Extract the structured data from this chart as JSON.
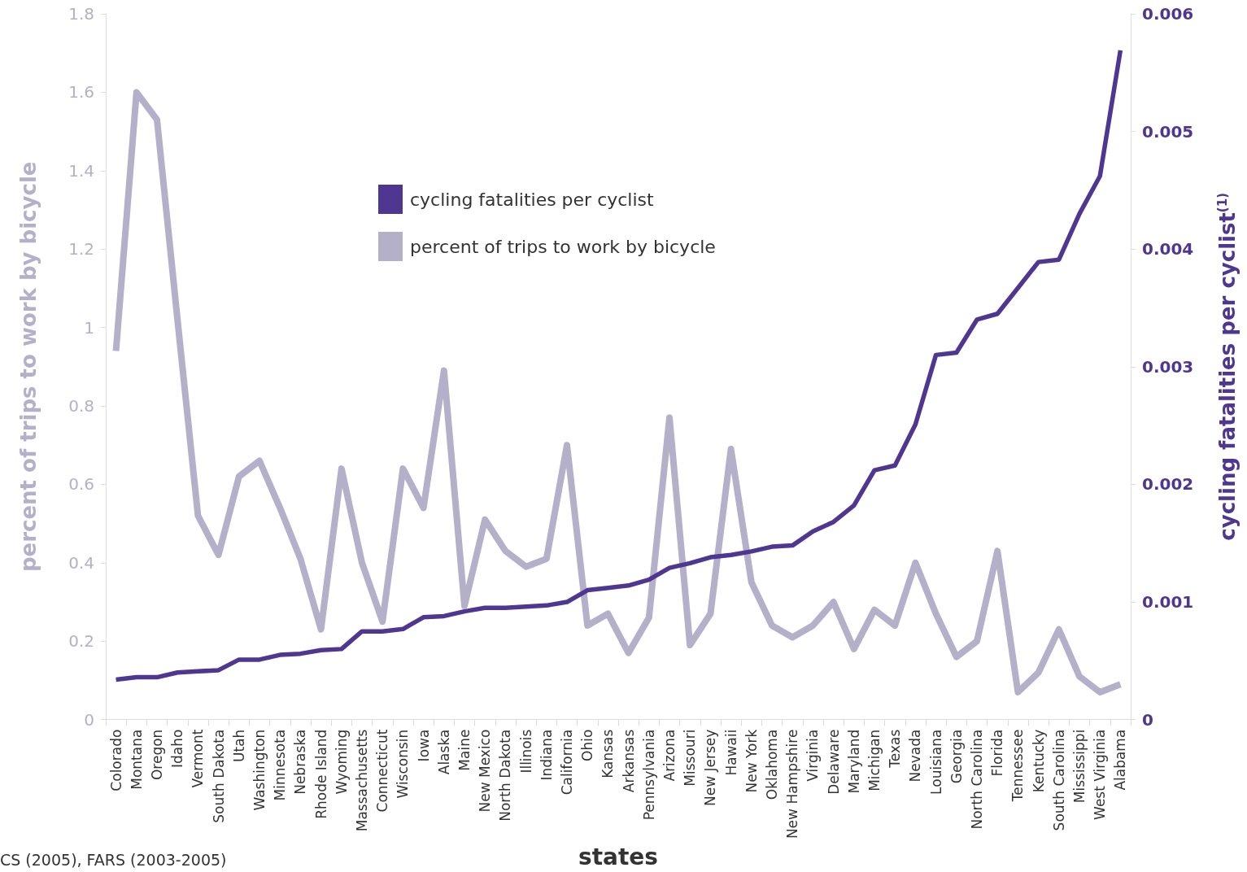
{
  "chart_data": {
    "type": "line",
    "xlabel": "states",
    "ylabel": "percent of trips to work by bicycle",
    "y2label": "cycling fatalities per cyclist$^{(1)}$",
    "categories": [
      "Colorado",
      "Montana",
      "Oregon",
      "Idaho",
      "Vermont",
      "South Dakota",
      "Utah",
      "Washington",
      "Minnesota",
      "Nebraska",
      "Rhode Island",
      "Wyoming",
      "Massachusetts",
      "Connecticut",
      "Wisconsin",
      "Iowa",
      "Alaska",
      "Maine",
      "New Mexico",
      "North Dakota",
      "Illinois",
      "Indiana",
      "California",
      "Ohio",
      "Kansas",
      "Arkansas",
      "Pennsylvania",
      "Arizona",
      "Missouri",
      "New Jersey",
      "Hawaii",
      "New York",
      "Oklahoma",
      "New Hampshire",
      "Virginia",
      "Delaware",
      "Maryland",
      "Michigan",
      "Texas",
      "Nevada",
      "Louisiana",
      "Georgia",
      "North Carolina",
      "Florida",
      "Tennessee",
      "Kentucky",
      "South Carolina",
      "Mississippi",
      "West Virginia",
      "Alabama"
    ],
    "series": [
      {
        "name": "cycling fatalities per cyclist",
        "color": "#4f3791",
        "axis": "y2",
        "values": [
          0.00034,
          0.00036,
          0.00036,
          0.0004,
          0.00041,
          0.00042,
          0.00051,
          0.00051,
          0.00055,
          0.00056,
          0.00059,
          0.0006,
          0.00075,
          0.00075,
          0.00077,
          0.00087,
          0.00088,
          0.00092,
          0.00095,
          0.00095,
          0.00096,
          0.00097,
          0.001,
          0.0011,
          0.00112,
          0.00114,
          0.00119,
          0.00129,
          0.00133,
          0.00138,
          0.0014,
          0.00143,
          0.00147,
          0.00148,
          0.0016,
          0.00168,
          0.00182,
          0.00212,
          0.00216,
          0.00251,
          0.0031,
          0.00312,
          0.0034,
          0.00345,
          0.00367,
          0.00389,
          0.00391,
          0.0043,
          0.00462,
          0.00569
        ]
      },
      {
        "name": "percent of trips to work by bicycle",
        "color": "#b4b0c9",
        "axis": "y",
        "values": [
          0.94,
          1.6,
          1.53,
          1.02,
          0.52,
          0.42,
          0.62,
          0.66,
          0.54,
          0.41,
          0.23,
          0.64,
          0.4,
          0.25,
          0.64,
          0.54,
          0.89,
          0.29,
          0.51,
          0.43,
          0.39,
          0.41,
          0.7,
          0.24,
          0.27,
          0.17,
          0.26,
          0.77,
          0.19,
          0.27,
          0.69,
          0.35,
          0.24,
          0.21,
          0.24,
          0.3,
          0.18,
          0.28,
          0.24,
          0.4,
          0.27,
          0.16,
          0.2,
          0.43,
          0.07,
          0.12,
          0.23,
          0.11,
          0.07,
          0.09
        ]
      }
    ],
    "ylim": [
      0,
      1.8
    ],
    "yticks": [
      0,
      0.2,
      0.4,
      0.6,
      0.8,
      1,
      1.2,
      1.4,
      1.6,
      1.8
    ],
    "y2lim": [
      0,
      0.006
    ],
    "y2ticks": [
      0,
      0.001,
      0.002,
      0.003,
      0.004,
      0.005,
      0.006
    ],
    "legend": "top",
    "grid": false,
    "marker": "none",
    "line_style": "solid",
    "annotations": [
      "CS (2005), FARS (2003-2005)"
    ]
  }
}
